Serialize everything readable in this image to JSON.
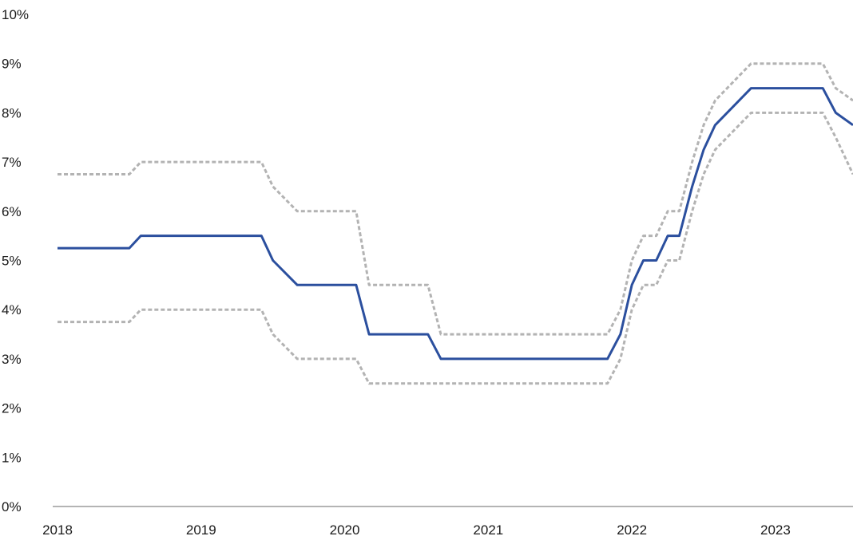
{
  "chart_data": {
    "type": "line",
    "title": "",
    "xlabel": "",
    "ylabel": "",
    "ylim": [
      0,
      10
    ],
    "xlim": [
      2018.0,
      2023.54
    ],
    "grid": false,
    "legend": "none",
    "y_ticks": [
      "0%",
      "1%",
      "2%",
      "3%",
      "4%",
      "5%",
      "6%",
      "7%",
      "8%",
      "9%",
      "10%"
    ],
    "x_ticks": [
      "2018",
      "2019",
      "2020",
      "2021",
      "2022",
      "2023"
    ],
    "colors": {
      "main": "#2b4f9e",
      "band": "#b3b3b3",
      "axis": "#888888"
    },
    "series": [
      {
        "style": "solid",
        "x": [
          2018.0,
          2018.5,
          2018.58,
          2019.42,
          2019.5,
          2019.67,
          2020.08,
          2020.17,
          2020.58,
          2020.67,
          2021.83,
          2021.92,
          2022.0,
          2022.08,
          2022.17,
          2022.25,
          2022.33,
          2022.42,
          2022.5,
          2022.58,
          2022.83,
          2023.33,
          2023.42,
          2023.54
        ],
        "values": [
          5.25,
          5.25,
          5.5,
          5.5,
          5.0,
          4.5,
          4.5,
          3.5,
          3.5,
          3.0,
          3.0,
          3.5,
          4.5,
          5.0,
          5.0,
          5.5,
          5.5,
          6.5,
          7.25,
          7.75,
          8.5,
          8.5,
          8.0,
          7.75
        ]
      },
      {
        "style": "dotted",
        "x": [
          2018.0,
          2018.5,
          2018.58,
          2019.42,
          2019.5,
          2019.67,
          2020.08,
          2020.17,
          2020.58,
          2020.67,
          2021.83,
          2021.92,
          2022.0,
          2022.08,
          2022.17,
          2022.25,
          2022.33,
          2022.42,
          2022.5,
          2022.58,
          2022.83,
          2023.33,
          2023.42,
          2023.54
        ],
        "values": [
          6.75,
          6.75,
          7.0,
          7.0,
          6.5,
          6.0,
          6.0,
          4.5,
          4.5,
          3.5,
          3.5,
          4.0,
          5.0,
          5.5,
          5.5,
          6.0,
          6.0,
          7.0,
          7.75,
          8.25,
          9.0,
          9.0,
          8.5,
          8.25
        ]
      },
      {
        "style": "dotted",
        "x": [
          2018.0,
          2018.5,
          2018.58,
          2019.42,
          2019.5,
          2019.67,
          2020.08,
          2020.17,
          2020.58,
          2020.67,
          2021.83,
          2021.92,
          2022.0,
          2022.08,
          2022.17,
          2022.25,
          2022.33,
          2022.42,
          2022.5,
          2022.58,
          2022.83,
          2023.33,
          2023.42,
          2023.54
        ],
        "values": [
          3.75,
          3.75,
          4.0,
          4.0,
          3.5,
          3.0,
          3.0,
          2.5,
          2.5,
          2.5,
          2.5,
          3.0,
          4.0,
          4.5,
          4.5,
          5.0,
          5.0,
          6.0,
          6.75,
          7.25,
          8.0,
          8.0,
          7.5,
          6.75
        ]
      }
    ]
  }
}
